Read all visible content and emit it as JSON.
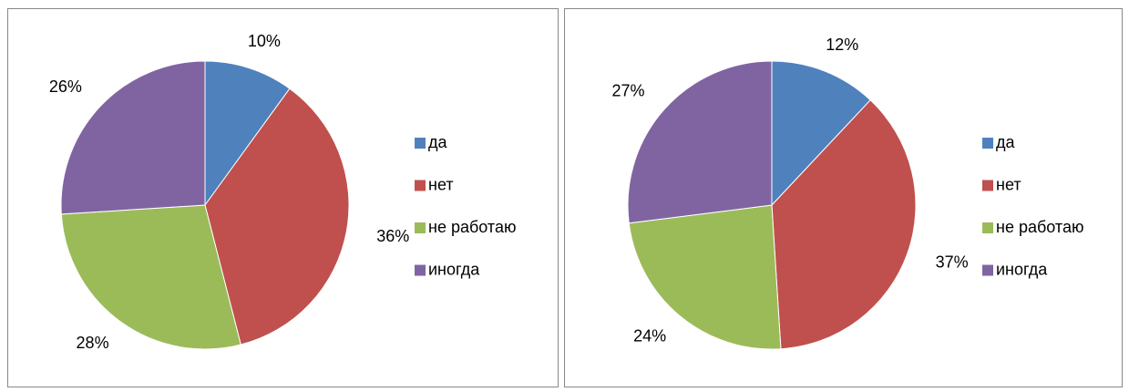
{
  "chart_data": [
    {
      "type": "pie",
      "categories": [
        "да",
        "нет",
        "не работаю",
        "иногда"
      ],
      "values": [
        10,
        36,
        28,
        26
      ],
      "value_labels": [
        "10%",
        "36%",
        "28%",
        "26%"
      ],
      "colors": [
        "#4f81bd",
        "#c0504d",
        "#9bbb59",
        "#8064a2"
      ],
      "legend": "right"
    },
    {
      "type": "pie",
      "categories": [
        "да",
        "нет",
        "не работаю",
        "иногда"
      ],
      "values": [
        12,
        37,
        24,
        27
      ],
      "value_labels": [
        "12%",
        "37%",
        "24%",
        "27%"
      ],
      "colors": [
        "#4f81bd",
        "#c0504d",
        "#9bbb59",
        "#8064a2"
      ],
      "legend": "right"
    }
  ]
}
